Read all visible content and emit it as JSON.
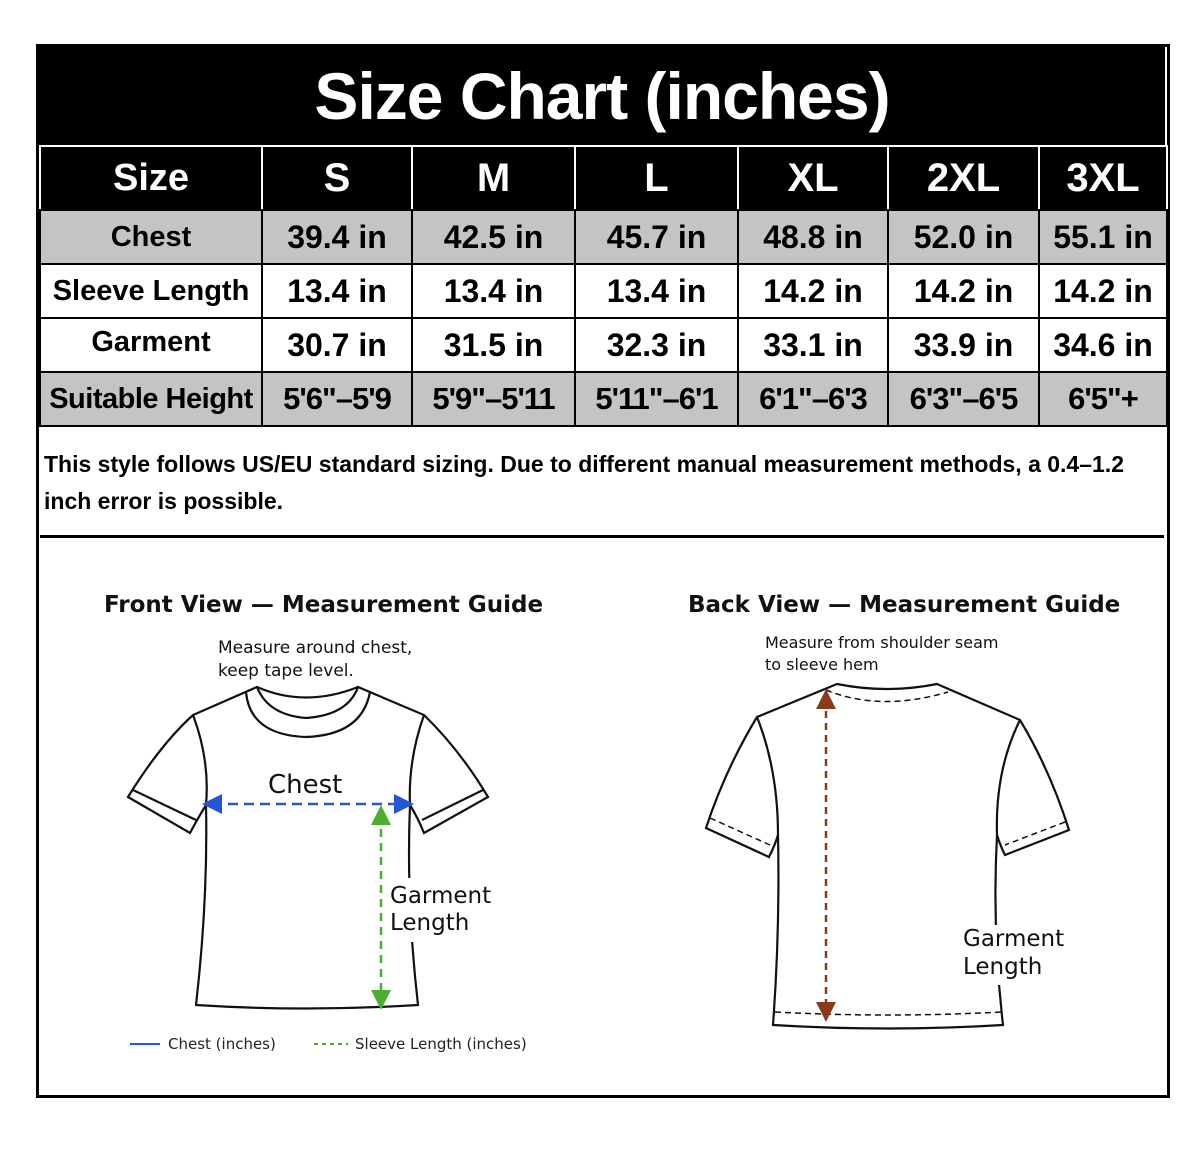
{
  "title": "Size Chart (inches)",
  "table": {
    "header": [
      "Size",
      "S",
      "M",
      "L",
      "XL",
      "2XL",
      "3XL"
    ],
    "rows": [
      {
        "label": "Chest",
        "values": [
          "39.4 in",
          "42.5 in",
          "45.7 in",
          "48.8 in",
          "52.0 in",
          "55.1 in"
        ]
      },
      {
        "label": "Sleeve Length",
        "values": [
          "13.4 in",
          "13.4 in",
          "13.4 in",
          "14.2 in",
          "14.2 in",
          "14.2 in"
        ]
      },
      {
        "label": "Garment Length",
        "values": [
          "30.7 in",
          "31.5 in",
          "32.3 in",
          "33.1 in",
          "33.9 in",
          "34.6 in"
        ]
      },
      {
        "label": "Suitable Height",
        "values": [
          "5'6\"–5'9",
          "5'9\"–5'11",
          "5'11\"–6'1",
          "6'1\"–6'3",
          "6'3\"–6'5",
          "6'5\"+"
        ]
      }
    ]
  },
  "note": "This style follows US/EU standard sizing. Due to different manual measurement methods, a 0.4–1.2 inch error is possible.",
  "front": {
    "title": "Front View — Measurement Guide",
    "instruction_line1": "Measure around chest,",
    "instruction_line2": "keep tape level.",
    "chest_label": "Chest",
    "length_line1": "Garment",
    "length_line2": "Length",
    "legend": [
      {
        "label": "Chest (inches)",
        "color": "#2456d6",
        "style": "solid"
      },
      {
        "label": "Sleeve Length (inches)",
        "color": "#4caf32",
        "style": "dashed"
      }
    ]
  },
  "back": {
    "title": "Back View — Measurement Guide",
    "instruction_line1": "Measure from shoulder seam",
    "instruction_line2": "to sleeve hem",
    "length_line1": "Garment",
    "length_line2": "Length",
    "arrow_color": "#8b3a1a"
  },
  "colors": {
    "header_bg": "#000000",
    "gray_row": "#c4c4c4",
    "chest_arrow": "#2456d6",
    "length_arrow": "#4caf32",
    "back_arrow": "#8b3a1a"
  }
}
